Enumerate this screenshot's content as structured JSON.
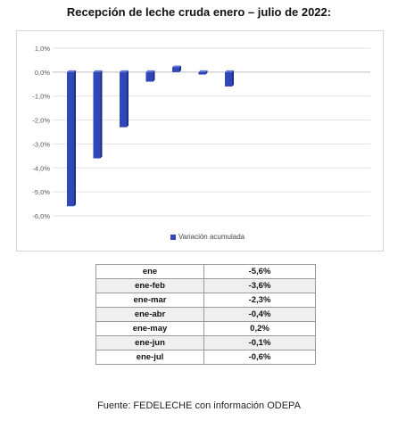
{
  "title": "Recepción de leche cruda enero – julio de 2022:",
  "chart_data": {
    "type": "bar",
    "categories": [
      "ene",
      "ene-feb",
      "ene-mar",
      "ene-abr",
      "ene-may",
      "ene-jun",
      "ene-jul"
    ],
    "series": [
      {
        "name": "Variación acumulada",
        "values": [
          -5.6,
          -3.6,
          -2.3,
          -0.4,
          0.2,
          -0.1,
          -0.6
        ]
      }
    ],
    "ylim": [
      -6,
      1
    ],
    "yticks": [
      "1,0%",
      "0,0%",
      "-1,0%",
      "-2,0%",
      "-3,0%",
      "-4,0%",
      "-5,0%",
      "-6,0%"
    ],
    "bar_color": "#2f47b8",
    "grid": true,
    "legend": "bottom"
  },
  "table": {
    "rows": [
      {
        "period": "ene",
        "value": "-5,6%"
      },
      {
        "period": "ene-feb",
        "value": "-3,6%"
      },
      {
        "period": "ene-mar",
        "value": "-2,3%"
      },
      {
        "period": "ene-abr",
        "value": "-0,4%"
      },
      {
        "period": "ene-may",
        "value": "0,2%"
      },
      {
        "period": "ene-jun",
        "value": "-0,1%"
      },
      {
        "period": "ene-jul",
        "value": "-0,6%"
      }
    ]
  },
  "source": "Fuente: FEDELECHE con información ODEPA"
}
